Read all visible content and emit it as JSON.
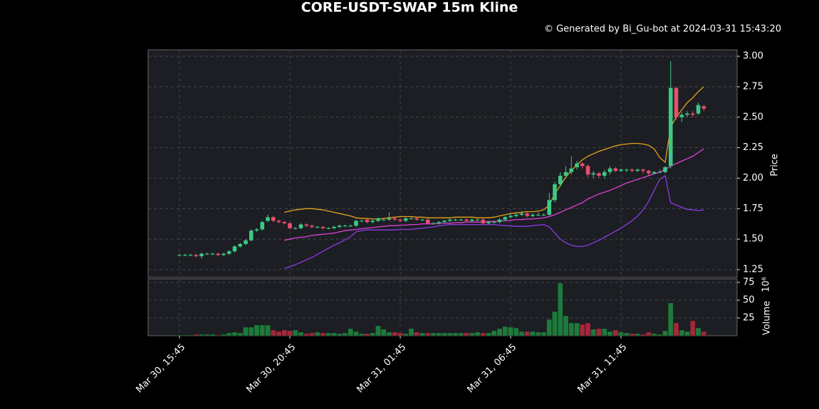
{
  "chart_data": [
    {
      "type": "candlestick",
      "title": "CORE-USDT-SWAP 15m Kline",
      "subtitle": "© Generated by Bi_Gu-bot at 2024-03-31 15:43:20",
      "y_label": "Price",
      "x": [
        "Mar 30, 15:45",
        "Mar 30, 16:00",
        "Mar 30, 16:15",
        "Mar 30, 16:30",
        "Mar 30, 16:45",
        "Mar 30, 17:00",
        "Mar 30, 17:15",
        "Mar 30, 17:30",
        "Mar 30, 17:45",
        "Mar 30, 18:00",
        "Mar 30, 18:15",
        "Mar 30, 18:30",
        "Mar 30, 18:45",
        "Mar 30, 19:00",
        "Mar 30, 19:15",
        "Mar 30, 19:30",
        "Mar 30, 19:45",
        "Mar 30, 20:00",
        "Mar 30, 20:15",
        "Mar 30, 20:30",
        "Mar 30, 20:45",
        "Mar 30, 21:00",
        "Mar 30, 21:15",
        "Mar 30, 21:30",
        "Mar 30, 21:45",
        "Mar 30, 22:00",
        "Mar 30, 22:15",
        "Mar 30, 22:30",
        "Mar 30, 22:45",
        "Mar 30, 23:00",
        "Mar 30, 23:15",
        "Mar 30, 23:30",
        "Mar 30, 23:45",
        "Mar 31, 00:00",
        "Mar 31, 00:15",
        "Mar 31, 00:30",
        "Mar 31, 00:45",
        "Mar 31, 01:00",
        "Mar 31, 01:15",
        "Mar 31, 01:30",
        "Mar 31, 01:45",
        "Mar 31, 02:00",
        "Mar 31, 02:15",
        "Mar 31, 02:30",
        "Mar 31, 02:45",
        "Mar 31, 03:00",
        "Mar 31, 03:15",
        "Mar 31, 03:30",
        "Mar 31, 03:45",
        "Mar 31, 04:00",
        "Mar 31, 04:15",
        "Mar 31, 04:30",
        "Mar 31, 04:45",
        "Mar 31, 05:00",
        "Mar 31, 05:15",
        "Mar 31, 05:30",
        "Mar 31, 05:45",
        "Mar 31, 06:00",
        "Mar 31, 06:15",
        "Mar 31, 06:30",
        "Mar 31, 06:45",
        "Mar 31, 07:00",
        "Mar 31, 07:15",
        "Mar 31, 07:30",
        "Mar 31, 07:45",
        "Mar 31, 08:00",
        "Mar 31, 08:15",
        "Mar 31, 08:30",
        "Mar 31, 08:45",
        "Mar 31, 09:00",
        "Mar 31, 09:15",
        "Mar 31, 09:30",
        "Mar 31, 09:45",
        "Mar 31, 10:00",
        "Mar 31, 10:15",
        "Mar 31, 10:30",
        "Mar 31, 10:45",
        "Mar 31, 11:00",
        "Mar 31, 11:15",
        "Mar 31, 11:30",
        "Mar 31, 11:45",
        "Mar 31, 12:00",
        "Mar 31, 12:15",
        "Mar 31, 12:30",
        "Mar 31, 12:45",
        "Mar 31, 13:00",
        "Mar 31, 13:15",
        "Mar 31, 13:30",
        "Mar 31, 13:45",
        "Mar 31, 14:00",
        "Mar 31, 14:15",
        "Mar 31, 14:30",
        "Mar 31, 14:45",
        "Mar 31, 15:00",
        "Mar 31, 15:15",
        "Mar 31, 15:30"
      ],
      "open": [
        1.37,
        1.37,
        1.37,
        1.37,
        1.36,
        1.38,
        1.38,
        1.38,
        1.37,
        1.38,
        1.4,
        1.44,
        1.46,
        1.49,
        1.57,
        1.58,
        1.65,
        1.68,
        1.65,
        1.64,
        1.63,
        1.59,
        1.59,
        1.62,
        1.61,
        1.6,
        1.6,
        1.59,
        1.59,
        1.6,
        1.61,
        1.61,
        1.61,
        1.65,
        1.66,
        1.64,
        1.65,
        1.66,
        1.66,
        1.67,
        1.66,
        1.65,
        1.67,
        1.67,
        1.66,
        1.66,
        1.63,
        1.63,
        1.64,
        1.65,
        1.66,
        1.66,
        1.66,
        1.65,
        1.66,
        1.66,
        1.63,
        1.64,
        1.64,
        1.66,
        1.68,
        1.69,
        1.7,
        1.71,
        1.69,
        1.7,
        1.7,
        1.7,
        1.82,
        1.95,
        2.02,
        2.05,
        2.09,
        2.12,
        2.1,
        2.03,
        2.04,
        2.02,
        2.05,
        2.08,
        2.06,
        2.07,
        2.07,
        2.06,
        2.07,
        2.06,
        2.04,
        2.05,
        2.05,
        2.1,
        2.74,
        2.5,
        2.52,
        2.53,
        2.53,
        2.59
      ],
      "high": [
        1.38,
        1.38,
        1.38,
        1.38,
        1.39,
        1.39,
        1.39,
        1.39,
        1.39,
        1.41,
        1.45,
        1.47,
        1.5,
        1.58,
        1.59,
        1.65,
        1.7,
        1.69,
        1.66,
        1.65,
        1.64,
        1.6,
        1.63,
        1.63,
        1.62,
        1.61,
        1.61,
        1.6,
        1.61,
        1.62,
        1.62,
        1.62,
        1.66,
        1.66,
        1.67,
        1.66,
        1.68,
        1.67,
        1.72,
        1.68,
        1.67,
        1.68,
        1.68,
        1.68,
        1.67,
        1.67,
        1.64,
        1.65,
        1.66,
        1.67,
        1.67,
        1.67,
        1.67,
        1.67,
        1.67,
        1.67,
        1.65,
        1.65,
        1.67,
        1.69,
        1.71,
        1.71,
        1.73,
        1.72,
        1.71,
        1.72,
        1.71,
        1.88,
        1.97,
        2.05,
        2.1,
        2.18,
        2.14,
        2.13,
        2.11,
        2.06,
        2.05,
        2.07,
        2.1,
        2.09,
        2.08,
        2.08,
        2.08,
        2.08,
        2.08,
        2.07,
        2.06,
        2.07,
        2.1,
        2.96,
        2.75,
        2.54,
        2.55,
        2.55,
        2.62,
        2.6
      ],
      "low": [
        1.36,
        1.36,
        1.36,
        1.35,
        1.34,
        1.37,
        1.37,
        1.36,
        1.36,
        1.37,
        1.39,
        1.43,
        1.45,
        1.48,
        1.56,
        1.57,
        1.64,
        1.64,
        1.63,
        1.62,
        1.58,
        1.58,
        1.58,
        1.6,
        1.59,
        1.59,
        1.58,
        1.58,
        1.58,
        1.59,
        1.6,
        1.6,
        1.6,
        1.64,
        1.63,
        1.63,
        1.64,
        1.65,
        1.65,
        1.65,
        1.64,
        1.64,
        1.66,
        1.65,
        1.65,
        1.62,
        1.62,
        1.62,
        1.63,
        1.64,
        1.65,
        1.65,
        1.64,
        1.64,
        1.65,
        1.62,
        1.62,
        1.63,
        1.63,
        1.65,
        1.67,
        1.68,
        1.69,
        1.68,
        1.68,
        1.69,
        1.69,
        1.69,
        1.8,
        1.93,
        2.0,
        2.03,
        2.07,
        2.08,
        2.01,
        2.0,
        2.0,
        2.0,
        2.03,
        2.05,
        2.05,
        2.05,
        2.05,
        2.05,
        2.04,
        2.02,
        2.03,
        2.04,
        2.04,
        2.08,
        2.48,
        2.46,
        2.5,
        2.5,
        2.52,
        2.55
      ],
      "close": [
        1.37,
        1.37,
        1.37,
        1.36,
        1.38,
        1.38,
        1.38,
        1.37,
        1.38,
        1.4,
        1.44,
        1.46,
        1.49,
        1.57,
        1.58,
        1.64,
        1.68,
        1.65,
        1.64,
        1.63,
        1.59,
        1.59,
        1.62,
        1.61,
        1.6,
        1.6,
        1.59,
        1.59,
        1.6,
        1.61,
        1.61,
        1.61,
        1.65,
        1.65,
        1.64,
        1.65,
        1.67,
        1.66,
        1.67,
        1.66,
        1.65,
        1.67,
        1.67,
        1.66,
        1.66,
        1.63,
        1.63,
        1.64,
        1.65,
        1.66,
        1.66,
        1.66,
        1.65,
        1.66,
        1.66,
        1.63,
        1.64,
        1.64,
        1.66,
        1.68,
        1.69,
        1.7,
        1.71,
        1.69,
        1.7,
        1.7,
        1.7,
        1.82,
        1.95,
        2.02,
        2.05,
        2.08,
        2.12,
        2.1,
        2.03,
        2.04,
        2.02,
        2.05,
        2.08,
        2.06,
        2.07,
        2.07,
        2.06,
        2.07,
        2.06,
        2.04,
        2.05,
        2.05,
        2.09,
        2.74,
        2.5,
        2.52,
        2.53,
        2.52,
        2.6,
        2.57
      ],
      "up_color": "#3dc985",
      "down_color": "#e8506e",
      "series": [
        {
          "color": "#e6a21a",
          "values": [
            null,
            null,
            null,
            null,
            null,
            null,
            null,
            null,
            null,
            null,
            null,
            null,
            null,
            null,
            null,
            null,
            null,
            null,
            null,
            1.72,
            1.73,
            1.74,
            1.745,
            1.75,
            1.75,
            1.745,
            1.74,
            1.73,
            1.72,
            1.71,
            1.7,
            1.69,
            1.675,
            1.67,
            1.67,
            1.665,
            1.665,
            1.67,
            1.675,
            1.68,
            1.685,
            1.685,
            1.685,
            1.68,
            1.68,
            1.675,
            1.675,
            1.675,
            1.675,
            1.675,
            1.68,
            1.68,
            1.68,
            1.68,
            1.675,
            1.675,
            1.675,
            1.68,
            1.69,
            1.7,
            1.71,
            1.715,
            1.72,
            1.725,
            1.725,
            1.73,
            1.74,
            1.78,
            1.87,
            1.94,
            2.01,
            2.06,
            2.11,
            2.15,
            2.18,
            2.2,
            2.22,
            2.235,
            2.25,
            2.265,
            2.275,
            2.28,
            2.285,
            2.285,
            2.28,
            2.27,
            2.24,
            2.17,
            2.13,
            2.42,
            2.5,
            2.56,
            2.62,
            2.66,
            2.71,
            2.75
          ]
        },
        {
          "color": "#e040d8",
          "values": [
            null,
            null,
            null,
            null,
            null,
            null,
            null,
            null,
            null,
            null,
            null,
            null,
            null,
            null,
            null,
            null,
            null,
            null,
            null,
            1.49,
            1.5,
            1.51,
            1.515,
            1.52,
            1.53,
            1.535,
            1.54,
            1.545,
            1.55,
            1.56,
            1.57,
            1.575,
            1.58,
            1.585,
            1.59,
            1.595,
            1.6,
            1.605,
            1.61,
            1.61,
            1.615,
            1.615,
            1.62,
            1.62,
            1.625,
            1.625,
            1.625,
            1.63,
            1.63,
            1.63,
            1.635,
            1.635,
            1.64,
            1.64,
            1.64,
            1.64,
            1.645,
            1.645,
            1.65,
            1.65,
            1.655,
            1.66,
            1.66,
            1.665,
            1.665,
            1.67,
            1.675,
            1.685,
            1.7,
            1.72,
            1.74,
            1.76,
            1.78,
            1.8,
            1.83,
            1.85,
            1.87,
            1.885,
            1.9,
            1.92,
            1.94,
            1.96,
            1.975,
            1.99,
            2.005,
            2.02,
            2.035,
            2.05,
            2.07,
            2.1,
            2.12,
            2.14,
            2.16,
            2.18,
            2.21,
            2.24
          ]
        },
        {
          "color": "#8a3ce6",
          "values": [
            null,
            null,
            null,
            null,
            null,
            null,
            null,
            null,
            null,
            null,
            null,
            null,
            null,
            null,
            null,
            null,
            null,
            null,
            null,
            1.26,
            1.275,
            1.29,
            1.31,
            1.33,
            1.35,
            1.375,
            1.4,
            1.425,
            1.45,
            1.47,
            1.495,
            1.52,
            1.56,
            1.57,
            1.575,
            1.575,
            1.575,
            1.575,
            1.575,
            1.575,
            1.58,
            1.58,
            1.58,
            1.585,
            1.59,
            1.595,
            1.6,
            1.61,
            1.615,
            1.62,
            1.62,
            1.62,
            1.62,
            1.62,
            1.62,
            1.62,
            1.62,
            1.62,
            1.615,
            1.61,
            1.61,
            1.605,
            1.605,
            1.605,
            1.61,
            1.615,
            1.62,
            1.6,
            1.55,
            1.5,
            1.47,
            1.45,
            1.44,
            1.44,
            1.45,
            1.47,
            1.49,
            1.515,
            1.54,
            1.565,
            1.59,
            1.62,
            1.65,
            1.69,
            1.74,
            1.81,
            1.9,
            1.99,
            2.02,
            1.8,
            1.78,
            1.76,
            1.745,
            1.74,
            1.735,
            1.74
          ]
        }
      ],
      "ylim": [
        1.186,
        3.053
      ],
      "yticks": [
        1.25,
        {
          "value": 1.5,
          "label": "1.50"
        },
        1.75,
        {
          "value": 2.0,
          "label": "2.00"
        },
        2.25,
        {
          "value": 2.5,
          "label": "2.50"
        },
        2.75,
        {
          "value": 3.0,
          "label": "3.00"
        }
      ],
      "xticks": [
        "Mar 30, 15:45",
        "Mar 30, 20:45",
        "Mar 31, 01:45",
        "Mar 31, 06:45",
        "Mar 31, 11:45"
      ],
      "grid": true
    },
    {
      "type": "bar",
      "y_label": "Volume",
      "y_offset_label": "10⁶",
      "values": [
        1,
        1,
        1,
        2,
        2,
        2,
        2,
        1,
        2,
        4,
        5,
        4,
        12,
        12,
        15,
        15,
        15,
        8,
        6,
        8,
        7,
        8,
        5,
        3,
        4,
        5,
        4,
        4,
        4,
        3,
        4,
        10,
        6,
        3,
        3,
        4,
        14,
        9,
        5,
        5,
        4,
        3,
        10,
        5,
        4,
        4,
        4,
        4,
        4,
        4,
        4,
        4,
        4,
        4,
        5,
        4,
        4,
        7,
        10,
        13,
        12,
        11,
        6,
        6,
        6,
        5,
        5,
        23,
        34,
        74,
        28,
        18,
        18,
        16,
        18,
        9,
        10,
        10,
        6,
        8,
        5,
        4,
        3,
        3,
        2,
        5,
        3,
        2,
        7,
        46,
        18,
        8,
        6,
        21,
        11,
        6
      ],
      "up_color": "#1f7a3c",
      "down_color": "#a3283c",
      "ylim": [
        0,
        80
      ],
      "yticks": [
        25,
        50,
        75
      ],
      "grid": true
    }
  ]
}
